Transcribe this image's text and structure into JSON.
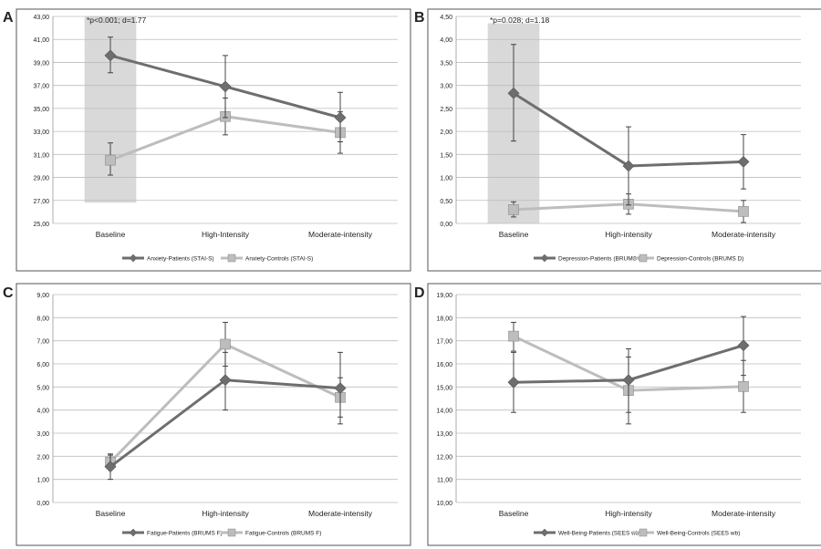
{
  "colors": {
    "patients": "#6e6e6e",
    "controls": "#bdbdbd",
    "highlight": "#d9d9d9",
    "grid": "#bdbdbd",
    "frame": "#555555",
    "text": "#222222"
  },
  "chart_data": [
    {
      "panel": "A",
      "type": "line",
      "categories": [
        "Baseline",
        "High-Intensity",
        "Moderate-intensity"
      ],
      "ylim": [
        25,
        43
      ],
      "ystep": 2,
      "ytick_labels": [
        "25,00",
        "27,00",
        "29,00",
        "31,00",
        "33,00",
        "35,00",
        "37,00",
        "39,00",
        "41,00",
        "43,00"
      ],
      "annotation": "*p<0.001; d=1.77",
      "highlight_category": "Baseline",
      "highlight_range": [
        26.8,
        43
      ],
      "series": [
        {
          "name": "Anxiety-Patients (STAI-S)",
          "role": "patients",
          "marker": "diamond",
          "values": [
            39.6,
            36.9,
            34.2
          ],
          "err_low": [
            38.1,
            34.2,
            32.1
          ],
          "err_high": [
            41.2,
            39.6,
            36.4
          ]
        },
        {
          "name": "Anxiety-Controls (STAI-S)",
          "role": "controls",
          "marker": "square",
          "values": [
            30.5,
            34.3,
            32.9
          ],
          "err_low": [
            29.2,
            32.7,
            31.1
          ],
          "err_high": [
            32.0,
            35.9,
            34.7
          ]
        }
      ],
      "legend": "bottom"
    },
    {
      "panel": "B",
      "type": "line",
      "categories": [
        "Baseline",
        "High-intensity",
        "Moderate-intensity"
      ],
      "ylim": [
        0,
        4.5
      ],
      "ystep": 0.5,
      "ytick_labels": [
        "0,00",
        "0,50",
        "1,00",
        "1,50",
        "2,00",
        "2,50",
        "3,00",
        "3,50",
        "4,00",
        "4,50"
      ],
      "annotation": "*p=0.028; d=1.18",
      "highlight_category": "Baseline",
      "highlight_range": [
        0,
        4.35
      ],
      "series": [
        {
          "name": "Depression-Patients (BRUMS D)",
          "role": "patients",
          "marker": "diamond",
          "values": [
            2.83,
            1.25,
            1.34
          ],
          "err_low": [
            1.79,
            0.4,
            0.75
          ],
          "err_high": [
            3.89,
            2.1,
            1.93
          ]
        },
        {
          "name": "Depression-Controls (BRUMS D)",
          "role": "controls",
          "marker": "square",
          "values": [
            0.3,
            0.42,
            0.26
          ],
          "err_low": [
            0.14,
            0.2,
            0.02
          ],
          "err_high": [
            0.47,
            0.64,
            0.5
          ]
        }
      ],
      "legend": "bottom"
    },
    {
      "panel": "C",
      "type": "line",
      "categories": [
        "Baseline",
        "High-intensity",
        "Moderate-intensity"
      ],
      "ylim": [
        0,
        9
      ],
      "ystep": 1,
      "ytick_labels": [
        "0,00",
        "1,00",
        "2,00",
        "3,00",
        "4,00",
        "5,00",
        "6,00",
        "7,00",
        "8,00",
        "9,00"
      ],
      "series": [
        {
          "name": "Fatigue-Patients (BRUMS F)",
          "role": "patients",
          "marker": "diamond",
          "values": [
            1.55,
            5.3,
            4.95
          ],
          "err_low": [
            1.0,
            4.0,
            3.4
          ],
          "err_high": [
            2.1,
            6.5,
            6.5
          ]
        },
        {
          "name": "Fatigue-Controls (BRUMS F)",
          "role": "controls",
          "marker": "square",
          "values": [
            1.75,
            6.85,
            4.55
          ],
          "err_low": [
            1.45,
            5.9,
            3.7
          ],
          "err_high": [
            2.05,
            7.8,
            5.4
          ]
        }
      ],
      "legend": "bottom"
    },
    {
      "panel": "D",
      "type": "line",
      "categories": [
        "Baseline",
        "High-intensity",
        "Moderate-intensity"
      ],
      "ylim": [
        10,
        19
      ],
      "ystep": 1,
      "ytick_labels": [
        "10,00",
        "11,00",
        "12,00",
        "13,00",
        "14,00",
        "15,00",
        "16,00",
        "17,00",
        "18,00",
        "19,00"
      ],
      "series": [
        {
          "name": "Well-Being-Patients (SEES wb)",
          "role": "patients",
          "marker": "diamond",
          "values": [
            15.2,
            15.3,
            16.8
          ],
          "err_low": [
            13.9,
            13.9,
            15.5
          ],
          "err_high": [
            16.5,
            16.65,
            18.05
          ]
        },
        {
          "name": "Well-Being-Controls (SEES wb)",
          "role": "controls",
          "marker": "square",
          "values": [
            17.2,
            14.85,
            15.02
          ],
          "err_low": [
            16.55,
            13.4,
            13.9
          ],
          "err_high": [
            17.8,
            16.3,
            16.15
          ]
        }
      ],
      "legend": "bottom"
    }
  ]
}
